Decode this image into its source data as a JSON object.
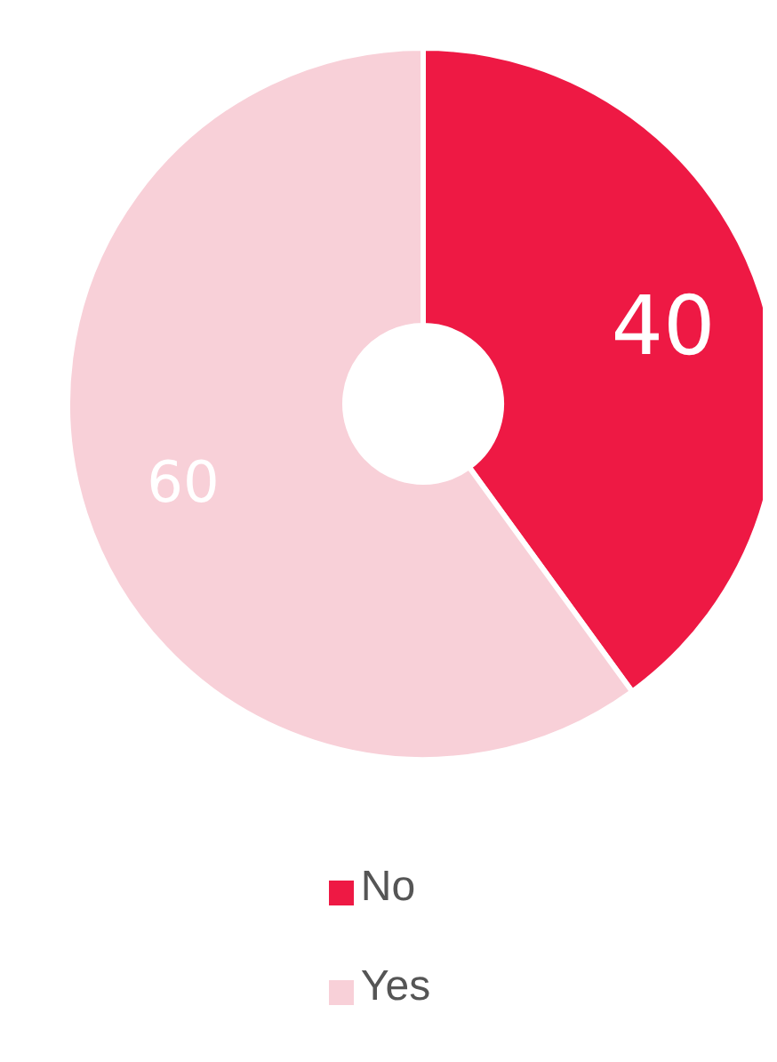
{
  "chart_data": {
    "type": "donut",
    "categories": [
      "No",
      "Yes"
    ],
    "values": [
      40,
      60
    ],
    "colors": [
      "#ee1944",
      "#f8d0d8"
    ],
    "data_labels": true,
    "legend": "bottom"
  }
}
